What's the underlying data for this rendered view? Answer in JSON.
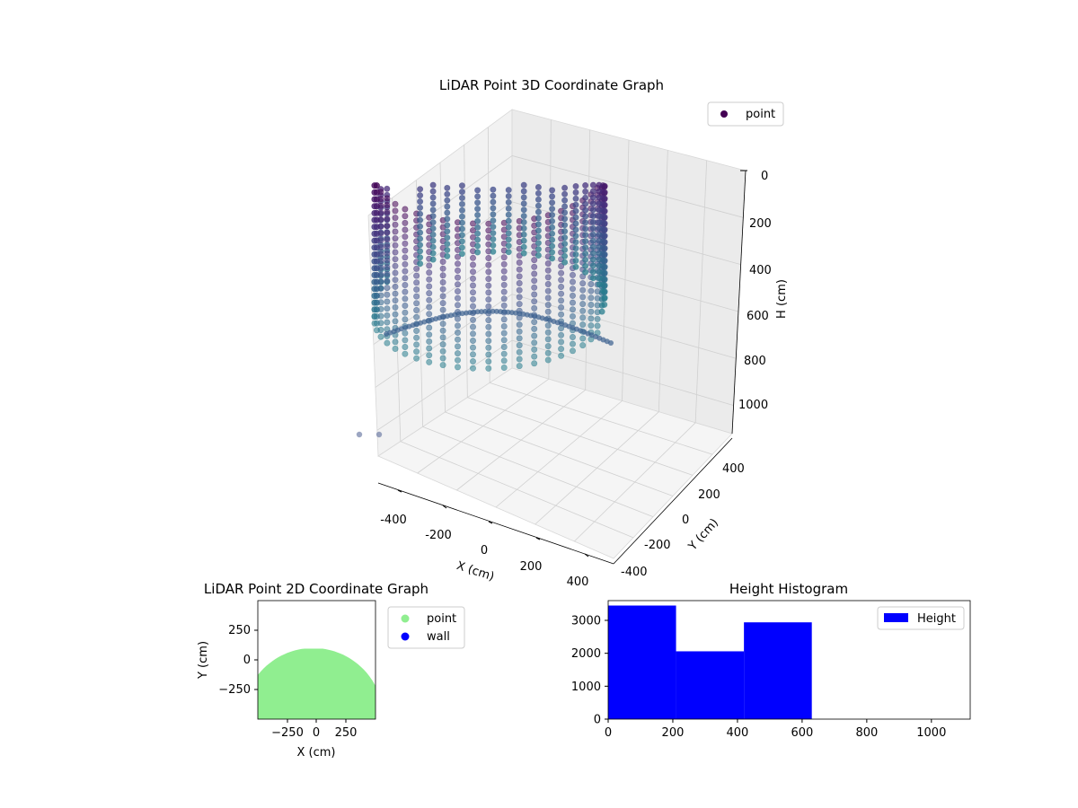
{
  "chart_data": [
    {
      "type": "scatter3d",
      "title": "LiDAR Point 3D Coordinate Graph",
      "xlabel": "X (cm)",
      "ylabel": "Y (cm)",
      "zlabel": "H (cm)",
      "xlim": [
        -500,
        500
      ],
      "ylim": [
        -500,
        500
      ],
      "zlim": [
        0,
        1100
      ],
      "z_inverted": true,
      "xticks": [
        "-400",
        "-200",
        "0",
        "200",
        "400"
      ],
      "yticks": [
        "-400",
        "-200",
        "0",
        "200",
        "400"
      ],
      "zticks": [
        "0",
        "200",
        "400",
        "600",
        "800",
        "1000"
      ],
      "grid": true,
      "legend": {
        "placement": "top-right",
        "entries": [
          {
            "label": "point",
            "color": "#440154"
          }
        ]
      },
      "colormap": "viridis",
      "description_of_data": "cylindrical shell of points, radius about 480 cm, heights about 0-1000 cm",
      "ring_radius": 480,
      "height_range": [
        0,
        1000
      ]
    },
    {
      "type": "scatter",
      "title": "LiDAR Point 2D Coordinate Graph",
      "xlabel": "X (cm)",
      "ylabel": "Y (cm)",
      "xlim": [
        -500,
        500
      ],
      "ylim": [
        -500,
        500
      ],
      "xticks": [
        "−250",
        "0",
        "250"
      ],
      "yticks": [
        "250",
        "0",
        "−250"
      ],
      "series": [
        {
          "name": "point",
          "color": "#90ee90"
        },
        {
          "name": "wall",
          "color": "#0000ff"
        }
      ],
      "legend": {
        "placement": "outside-right"
      }
    },
    {
      "type": "bar",
      "title": "Height Histogram",
      "xlabel": "",
      "ylabel": "",
      "xlim": [
        0,
        1120
      ],
      "ylim": [
        0,
        3600
      ],
      "xticks": [
        "0",
        "200",
        "400",
        "600",
        "800",
        "1000"
      ],
      "yticks": [
        "0",
        "1000",
        "2000",
        "3000"
      ],
      "bins": [
        {
          "start": 0,
          "end": 210,
          "count": 3450
        },
        {
          "start": 210,
          "end": 420,
          "count": 2060
        },
        {
          "start": 420,
          "end": 630,
          "count": 2940
        }
      ],
      "color": "#0000ff",
      "legend": {
        "placement": "top-right",
        "entries": [
          {
            "label": "Height",
            "color": "#0000ff"
          }
        ]
      }
    }
  ]
}
